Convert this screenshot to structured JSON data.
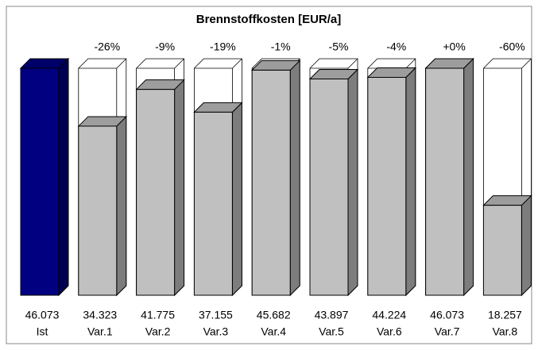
{
  "chart_data": {
    "type": "bar3d",
    "title": "Brennstoffkosten  [EUR/a]",
    "categories": [
      "Ist",
      "Var.1",
      "Var.2",
      "Var.3",
      "Var.4",
      "Var.5",
      "Var.6",
      "Var.7",
      "Var.8"
    ],
    "values": [
      46073,
      34323,
      41775,
      37155,
      45682,
      43897,
      44224,
      46073,
      18257
    ],
    "value_labels": [
      "46.073",
      "34.323",
      "41.775",
      "37.155",
      "45.682",
      "43.897",
      "44.224",
      "46.073",
      "18.257"
    ],
    "annotations": [
      null,
      "-26%",
      "-9%",
      "-19%",
      "-1%",
      "-5%",
      "-4%",
      "+0%",
      "-60%"
    ],
    "colors": [
      "#000080",
      "#c0c0c0",
      "#c0c0c0",
      "#c0c0c0",
      "#c0c0c0",
      "#c0c0c0",
      "#c0c0c0",
      "#c0c0c0",
      "#c0c0c0"
    ]
  }
}
